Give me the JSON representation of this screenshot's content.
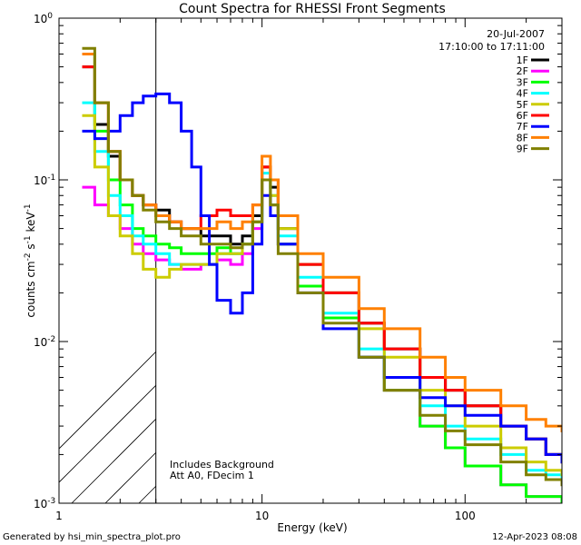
{
  "chart_data": {
    "type": "line",
    "title": "Count Spectra for RHESSI Front Segments",
    "xlabel": "Energy (keV)",
    "ylabel": "counts cm-2 s-1 keV-1",
    "xscale": "log",
    "yscale": "log",
    "xlim": [
      1,
      300
    ],
    "ylim": [
      0.001,
      1
    ],
    "xticks": [
      {
        "value": 1,
        "label": "1"
      },
      {
        "value": 10,
        "label": "10"
      },
      {
        "value": 100,
        "label": "100"
      }
    ],
    "yticks": [
      {
        "value": 1,
        "label": "10",
        "exp": "0"
      },
      {
        "value": 0.1,
        "label": "10",
        "exp": "-1"
      },
      {
        "value": 0.01,
        "label": "10",
        "exp": "-2"
      },
      {
        "value": 0.001,
        "label": "10",
        "exp": "-3"
      }
    ],
    "date": "20-Jul-2007",
    "time_range": "17:10:00 to 17:11:00",
    "attenuator_energy_cutoff_kev": 3,
    "annotations": [
      "Includes Background",
      "Att A0, FDecim 1"
    ],
    "series": [
      {
        "name": "1F",
        "color": "#000000",
        "points": [
          [
            1.3,
            0.5
          ],
          [
            1.5,
            0.22
          ],
          [
            1.75,
            0.14
          ],
          [
            2.0,
            0.1
          ],
          [
            2.3,
            0.08
          ],
          [
            2.6,
            0.07
          ],
          [
            3.0,
            0.065
          ],
          [
            3.5,
            0.055
          ],
          [
            4.0,
            0.05
          ],
          [
            5.0,
            0.045
          ],
          [
            6.0,
            0.045
          ],
          [
            7.0,
            0.04
          ],
          [
            8.0,
            0.045
          ],
          [
            9.0,
            0.06
          ],
          [
            10.0,
            0.12
          ],
          [
            11.0,
            0.09
          ],
          [
            12.0,
            0.05
          ],
          [
            15.0,
            0.03
          ],
          [
            20.0,
            0.02
          ],
          [
            30.0,
            0.013
          ],
          [
            40.0,
            0.009
          ],
          [
            60.0,
            0.006
          ],
          [
            80.0,
            0.005
          ],
          [
            100.0,
            0.004
          ],
          [
            150.0,
            0.003
          ],
          [
            200.0,
            0.0025
          ],
          [
            250.0,
            0.002
          ],
          [
            300.0,
            0.0018
          ]
        ]
      },
      {
        "name": "2F",
        "color": "#ff00ff",
        "points": [
          [
            1.3,
            0.09
          ],
          [
            1.5,
            0.07
          ],
          [
            1.75,
            0.06
          ],
          [
            2.0,
            0.05
          ],
          [
            2.3,
            0.04
          ],
          [
            2.6,
            0.035
          ],
          [
            3.0,
            0.032
          ],
          [
            3.5,
            0.03
          ],
          [
            4.0,
            0.028
          ],
          [
            5.0,
            0.03
          ],
          [
            6.0,
            0.032
          ],
          [
            7.0,
            0.03
          ],
          [
            8.0,
            0.035
          ],
          [
            9.0,
            0.05
          ],
          [
            10.0,
            0.1
          ],
          [
            11.0,
            0.07
          ],
          [
            12.0,
            0.04
          ],
          [
            15.0,
            0.022
          ],
          [
            20.0,
            0.014
          ],
          [
            30.0,
            0.008
          ],
          [
            40.0,
            0.005
          ],
          [
            60.0,
            0.003
          ],
          [
            80.0,
            0.0022
          ],
          [
            100.0,
            0.0017
          ],
          [
            150.0,
            0.0013
          ],
          [
            200.0,
            0.0011
          ],
          [
            250.0,
            0.0011
          ],
          [
            300.0,
            0.001
          ]
        ]
      },
      {
        "name": "3F",
        "color": "#00ff00",
        "points": [
          [
            1.3,
            0.6
          ],
          [
            1.5,
            0.2
          ],
          [
            1.75,
            0.1
          ],
          [
            2.0,
            0.07
          ],
          [
            2.3,
            0.05
          ],
          [
            2.6,
            0.045
          ],
          [
            3.0,
            0.04
          ],
          [
            3.5,
            0.038
          ],
          [
            4.0,
            0.035
          ],
          [
            5.0,
            0.035
          ],
          [
            6.0,
            0.038
          ],
          [
            7.0,
            0.035
          ],
          [
            8.0,
            0.04
          ],
          [
            9.0,
            0.055
          ],
          [
            10.0,
            0.1
          ],
          [
            11.0,
            0.07
          ],
          [
            12.0,
            0.04
          ],
          [
            15.0,
            0.022
          ],
          [
            20.0,
            0.014
          ],
          [
            30.0,
            0.008
          ],
          [
            40.0,
            0.005
          ],
          [
            60.0,
            0.003
          ],
          [
            80.0,
            0.0022
          ],
          [
            100.0,
            0.0017
          ],
          [
            150.0,
            0.0013
          ],
          [
            200.0,
            0.0011
          ],
          [
            250.0,
            0.0011
          ],
          [
            300.0,
            0.001
          ]
        ]
      },
      {
        "name": "4F",
        "color": "#00ffff",
        "points": [
          [
            1.3,
            0.3
          ],
          [
            1.5,
            0.15
          ],
          [
            1.75,
            0.08
          ],
          [
            2.0,
            0.06
          ],
          [
            2.3,
            0.045
          ],
          [
            2.6,
            0.04
          ],
          [
            3.0,
            0.035
          ],
          [
            3.5,
            0.03
          ],
          [
            4.0,
            0.03
          ],
          [
            5.0,
            0.03
          ],
          [
            6.0,
            0.035
          ],
          [
            7.0,
            0.035
          ],
          [
            8.0,
            0.04
          ],
          [
            9.0,
            0.055
          ],
          [
            10.0,
            0.11
          ],
          [
            11.0,
            0.08
          ],
          [
            12.0,
            0.045
          ],
          [
            15.0,
            0.025
          ],
          [
            20.0,
            0.015
          ],
          [
            30.0,
            0.009
          ],
          [
            40.0,
            0.006
          ],
          [
            60.0,
            0.004
          ],
          [
            80.0,
            0.003
          ],
          [
            100.0,
            0.0025
          ],
          [
            150.0,
            0.002
          ],
          [
            200.0,
            0.0016
          ],
          [
            250.0,
            0.0015
          ],
          [
            300.0,
            0.0014
          ]
        ]
      },
      {
        "name": "5F",
        "color": "#cccc00",
        "points": [
          [
            1.3,
            0.25
          ],
          [
            1.5,
            0.12
          ],
          [
            1.75,
            0.06
          ],
          [
            2.0,
            0.045
          ],
          [
            2.3,
            0.035
          ],
          [
            2.6,
            0.028
          ],
          [
            3.0,
            0.025
          ],
          [
            3.5,
            0.028
          ],
          [
            4.0,
            0.03
          ],
          [
            5.0,
            0.03
          ],
          [
            6.0,
            0.035
          ],
          [
            7.0,
            0.035
          ],
          [
            8.0,
            0.04
          ],
          [
            9.0,
            0.055
          ],
          [
            10.0,
            0.1
          ],
          [
            11.0,
            0.08
          ],
          [
            12.0,
            0.05
          ],
          [
            15.0,
            0.03
          ],
          [
            20.0,
            0.02
          ],
          [
            30.0,
            0.012
          ],
          [
            40.0,
            0.008
          ],
          [
            60.0,
            0.005
          ],
          [
            80.0,
            0.004
          ],
          [
            100.0,
            0.003
          ],
          [
            150.0,
            0.0022
          ],
          [
            200.0,
            0.0018
          ],
          [
            250.0,
            0.0016
          ],
          [
            300.0,
            0.0015
          ]
        ]
      },
      {
        "name": "6F",
        "color": "#ff0000",
        "points": [
          [
            1.3,
            0.5
          ],
          [
            1.5,
            0.3
          ],
          [
            1.75,
            0.15
          ],
          [
            2.0,
            0.1
          ],
          [
            2.3,
            0.08
          ],
          [
            2.6,
            0.07
          ],
          [
            3.0,
            0.06
          ],
          [
            3.5,
            0.055
          ],
          [
            4.0,
            0.05
          ],
          [
            5.0,
            0.06
          ],
          [
            6.0,
            0.065
          ],
          [
            7.0,
            0.06
          ],
          [
            8.0,
            0.06
          ],
          [
            9.0,
            0.07
          ],
          [
            10.0,
            0.12
          ],
          [
            11.0,
            0.1
          ],
          [
            12.0,
            0.06
          ],
          [
            15.0,
            0.03
          ],
          [
            20.0,
            0.02
          ],
          [
            30.0,
            0.013
          ],
          [
            40.0,
            0.009
          ],
          [
            60.0,
            0.006
          ],
          [
            80.0,
            0.005
          ],
          [
            100.0,
            0.004
          ],
          [
            150.0,
            0.003
          ],
          [
            200.0,
            0.0025
          ],
          [
            250.0,
            0.002
          ],
          [
            300.0,
            0.0018
          ]
        ]
      },
      {
        "name": "7F",
        "color": "#0000ff",
        "points": [
          [
            1.3,
            0.2
          ],
          [
            1.5,
            0.18
          ],
          [
            1.75,
            0.2
          ],
          [
            2.0,
            0.25
          ],
          [
            2.3,
            0.3
          ],
          [
            2.6,
            0.33
          ],
          [
            3.0,
            0.34
          ],
          [
            3.5,
            0.3
          ],
          [
            4.0,
            0.2
          ],
          [
            4.5,
            0.12
          ],
          [
            5.0,
            0.06
          ],
          [
            5.5,
            0.03
          ],
          [
            6.0,
            0.018
          ],
          [
            7.0,
            0.015
          ],
          [
            8.0,
            0.02
          ],
          [
            9.0,
            0.04
          ],
          [
            10.0,
            0.08
          ],
          [
            11.0,
            0.06
          ],
          [
            12.0,
            0.04
          ],
          [
            15.0,
            0.02
          ],
          [
            20.0,
            0.012
          ],
          [
            30.0,
            0.008
          ],
          [
            40.0,
            0.006
          ],
          [
            60.0,
            0.0045
          ],
          [
            80.0,
            0.004
          ],
          [
            100.0,
            0.0035
          ],
          [
            150.0,
            0.003
          ],
          [
            200.0,
            0.0025
          ],
          [
            250.0,
            0.002
          ],
          [
            300.0,
            0.0018
          ]
        ]
      },
      {
        "name": "8F",
        "color": "#ff8000",
        "points": [
          [
            1.3,
            0.6
          ],
          [
            1.5,
            0.3
          ],
          [
            1.75,
            0.15
          ],
          [
            2.0,
            0.1
          ],
          [
            2.3,
            0.08
          ],
          [
            2.6,
            0.07
          ],
          [
            3.0,
            0.06
          ],
          [
            3.5,
            0.055
          ],
          [
            4.0,
            0.05
          ],
          [
            5.0,
            0.05
          ],
          [
            6.0,
            0.055
          ],
          [
            7.0,
            0.05
          ],
          [
            8.0,
            0.055
          ],
          [
            9.0,
            0.07
          ],
          [
            10.0,
            0.14
          ],
          [
            11.0,
            0.1
          ],
          [
            12.0,
            0.06
          ],
          [
            15.0,
            0.035
          ],
          [
            20.0,
            0.025
          ],
          [
            30.0,
            0.016
          ],
          [
            40.0,
            0.012
          ],
          [
            60.0,
            0.008
          ],
          [
            80.0,
            0.006
          ],
          [
            100.0,
            0.005
          ],
          [
            150.0,
            0.004
          ],
          [
            200.0,
            0.0033
          ],
          [
            250.0,
            0.003
          ],
          [
            300.0,
            0.0028
          ]
        ]
      },
      {
        "name": "9F",
        "color": "#808000",
        "points": [
          [
            1.3,
            0.65
          ],
          [
            1.5,
            0.3
          ],
          [
            1.75,
            0.15
          ],
          [
            2.0,
            0.1
          ],
          [
            2.3,
            0.08
          ],
          [
            2.6,
            0.065
          ],
          [
            3.0,
            0.055
          ],
          [
            3.5,
            0.05
          ],
          [
            4.0,
            0.045
          ],
          [
            5.0,
            0.04
          ],
          [
            6.0,
            0.04
          ],
          [
            7.0,
            0.038
          ],
          [
            8.0,
            0.04
          ],
          [
            9.0,
            0.055
          ],
          [
            10.0,
            0.1
          ],
          [
            11.0,
            0.07
          ],
          [
            12.0,
            0.035
          ],
          [
            15.0,
            0.02
          ],
          [
            20.0,
            0.013
          ],
          [
            30.0,
            0.008
          ],
          [
            40.0,
            0.005
          ],
          [
            60.0,
            0.0035
          ],
          [
            80.0,
            0.0028
          ],
          [
            100.0,
            0.0023
          ],
          [
            150.0,
            0.0018
          ],
          [
            200.0,
            0.0015
          ],
          [
            250.0,
            0.0014
          ],
          [
            300.0,
            0.0013
          ]
        ]
      }
    ]
  },
  "footer": {
    "generated_by": "Generated by hsi_min_spectra_plot.pro",
    "timestamp": "12-Apr-2023 08:08"
  }
}
